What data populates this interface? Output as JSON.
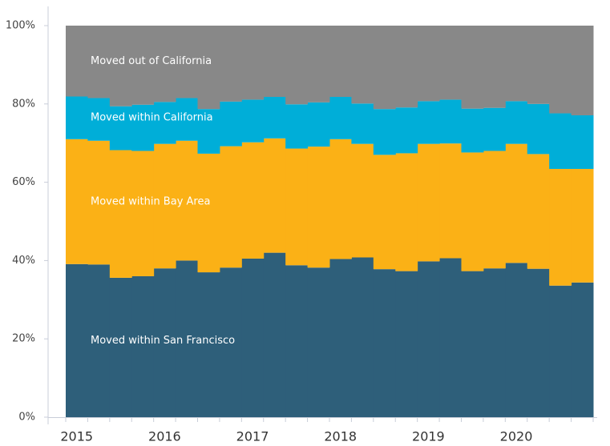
{
  "chart_data": {
    "type": "stacked-step-area",
    "categories": [
      "2015",
      null,
      null,
      null,
      "2016",
      null,
      null,
      null,
      "2017",
      null,
      null,
      null,
      "2018",
      null,
      null,
      null,
      "2019",
      null,
      null,
      null,
      "2020",
      null,
      null,
      null
    ],
    "series": [
      {
        "name": "Moved within San Francisco",
        "color": "#2e5f7a",
        "values": [
          39.1,
          39,
          35.6,
          36,
          38,
          40,
          37,
          38.2,
          40.5,
          42,
          38.8,
          38.2,
          40.4,
          40.8,
          37.8,
          37.3,
          39.8,
          40.6,
          37.3,
          38,
          39.4,
          37.9,
          33.6,
          34.4
        ]
      },
      {
        "name": "Moved within Bay Area",
        "color": "#fbb116",
        "values": [
          31.9,
          31.6,
          32.6,
          32,
          31.8,
          30.6,
          30.3,
          31,
          29.7,
          29.2,
          29.8,
          30.9,
          30.6,
          29,
          29.2,
          30.1,
          30,
          29.3,
          30.3,
          30,
          30.4,
          29.3,
          29.8,
          29
        ]
      },
      {
        "name": "Moved within California",
        "color": "#00aed8",
        "values": [
          10.9,
          10.9,
          11.2,
          11.8,
          10.7,
          10.9,
          11.4,
          11.4,
          10.9,
          10.6,
          11.3,
          11.3,
          10.8,
          10.3,
          11.7,
          11.7,
          10.9,
          11.2,
          11.2,
          11,
          10.9,
          12.8,
          14.2,
          13.7
        ]
      },
      {
        "name": "Moved out of California",
        "color": "#888888",
        "values": [
          18.1,
          18.5,
          20.6,
          20.2,
          19.5,
          18.5,
          21.3,
          19.4,
          18.9,
          18.2,
          20.1,
          19.6,
          18.2,
          19.9,
          21.3,
          20.9,
          19.3,
          18.9,
          21.2,
          21,
          19.3,
          20,
          22.4,
          22.9
        ]
      }
    ],
    "ylim": [
      0,
      100
    ],
    "yticks": [
      {
        "value": 0,
        "label": "0%"
      },
      {
        "value": 20,
        "label": "20%"
      },
      {
        "value": 40,
        "label": "40%"
      },
      {
        "value": 60,
        "label": "60%"
      },
      {
        "value": 80,
        "label": "80%"
      },
      {
        "value": 100,
        "label": "100%"
      }
    ]
  }
}
